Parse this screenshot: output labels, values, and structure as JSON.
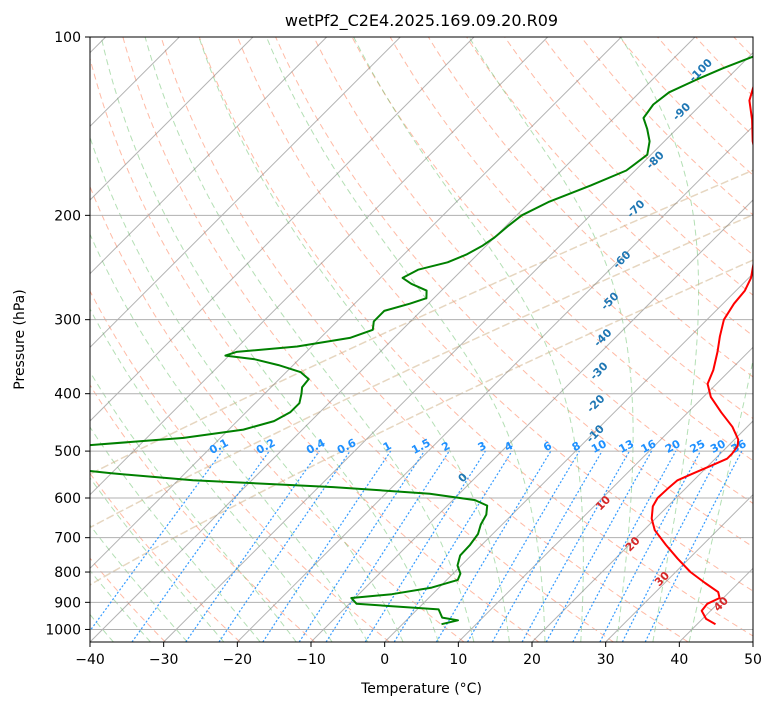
{
  "chart_data": {
    "type": "line",
    "subtype": "skew-T log-P diagram",
    "title": "wetPf2_C2E4.2025.169.09.20.R09",
    "xlabel": "Temperature (°C)",
    "ylabel": "Pressure (hPa)",
    "xlim": [
      -40,
      50
    ],
    "ylim": [
      1050,
      100
    ],
    "y_scale": "log",
    "skew_degrees": 45,
    "grid": true,
    "x_ticks": [
      -40,
      -30,
      -20,
      -10,
      0,
      10,
      20,
      30,
      40,
      50
    ],
    "x_tick_labels": [
      "−40",
      "−30",
      "−20",
      "−10",
      "0",
      "10",
      "20",
      "30",
      "40",
      "50"
    ],
    "y_ticks": [
      1000,
      900,
      800,
      700,
      600,
      500,
      400,
      300,
      200,
      100
    ],
    "y_tick_labels": [
      "1000",
      "900",
      "800",
      "700",
      "600",
      "500",
      "400",
      "300",
      "200",
      "100"
    ],
    "colors": {
      "temperature": "#ff0000",
      "dewpoint": "#008000",
      "isotherm": "#808080",
      "dry_adiabat": "#ff8c69",
      "moist_adiabat": "#74c476",
      "mixing_ratio": "#1e90ff",
      "wet_bulb_labels": "#1f77b4",
      "theta_e_labels": "#d62728",
      "ref_curve": "#d2b48c"
    },
    "series": [
      {
        "key": "temperature",
        "points": [
          [
            42.5,
            980
          ],
          [
            40.5,
            960
          ],
          [
            38.8,
            930
          ],
          [
            38.6,
            905
          ],
          [
            39.5,
            885
          ],
          [
            38.5,
            865
          ],
          [
            35.5,
            835
          ],
          [
            32,
            800
          ],
          [
            28.5,
            760
          ],
          [
            25,
            720
          ],
          [
            21.5,
            680
          ],
          [
            19.5,
            650
          ],
          [
            18,
            620
          ],
          [
            17.5,
            600
          ],
          [
            17.6,
            580
          ],
          [
            17.8,
            560
          ],
          [
            19,
            545
          ],
          [
            20.5,
            528
          ],
          [
            21.6,
            515
          ],
          [
            21.6,
            505
          ],
          [
            21.3,
            490
          ],
          [
            20.5,
            478
          ],
          [
            18,
            455
          ],
          [
            14.5,
            430
          ],
          [
            11,
            405
          ],
          [
            8.8,
            385
          ],
          [
            7.7,
            365
          ],
          [
            5.8,
            340
          ],
          [
            4,
            320
          ],
          [
            2.3,
            300
          ],
          [
            1.5,
            282
          ],
          [
            1.2,
            268
          ],
          [
            0.3,
            255
          ],
          [
            -1.2,
            242
          ],
          [
            -2.7,
            230
          ],
          [
            -4.3,
            220
          ],
          [
            -5.3,
            212
          ],
          [
            -6.5,
            204
          ],
          [
            -8,
            195
          ],
          [
            -11,
            180
          ],
          [
            -14,
            165
          ],
          [
            -18,
            150
          ],
          [
            -21,
            138
          ],
          [
            -24,
            128
          ],
          [
            -26,
            118
          ],
          [
            -27,
            112
          ],
          [
            -28,
            106
          ],
          [
            -28.5,
            100
          ]
        ]
      },
      {
        "key": "dewpoint",
        "points": [
          [
            5.3,
            980
          ],
          [
            7,
            965
          ],
          [
            4.5,
            955
          ],
          [
            2.9,
            925
          ],
          [
            -9,
            905
          ],
          [
            -10.5,
            885
          ],
          [
            -5.5,
            872
          ],
          [
            -1,
            850
          ],
          [
            1.5,
            825
          ],
          [
            1,
            805
          ],
          [
            -0.5,
            780
          ],
          [
            -1.5,
            750
          ],
          [
            -1.6,
            720
          ],
          [
            -2,
            690
          ],
          [
            -2.9,
            665
          ],
          [
            -3.5,
            640
          ],
          [
            -4.6,
            618
          ],
          [
            -7,
            605
          ],
          [
            -14,
            590
          ],
          [
            -28,
            575
          ],
          [
            -48,
            560
          ],
          [
            -60,
            545
          ],
          [
            -70,
            530
          ],
          [
            -77,
            518
          ],
          [
            -85,
            510
          ],
          [
            -85,
            500
          ],
          [
            -68,
            490
          ],
          [
            -55,
            475
          ],
          [
            -48,
            460
          ],
          [
            -45,
            445
          ],
          [
            -44,
            430
          ],
          [
            -44,
            415
          ],
          [
            -45,
            400
          ],
          [
            -45.8,
            390
          ],
          [
            -46,
            378
          ],
          [
            -48,
            368
          ],
          [
            -52,
            358
          ],
          [
            -56,
            350
          ],
          [
            -60.5,
            345
          ],
          [
            -59.5,
            340
          ],
          [
            -52,
            333
          ],
          [
            -46,
            322
          ],
          [
            -44,
            312
          ],
          [
            -45,
            302
          ],
          [
            -45,
            290
          ],
          [
            -42.5,
            282
          ],
          [
            -41,
            276
          ],
          [
            -42,
            268
          ],
          [
            -45,
            261
          ],
          [
            -47,
            255
          ],
          [
            -46,
            247
          ],
          [
            -43,
            240
          ],
          [
            -41.5,
            233
          ],
          [
            -40.5,
            225
          ],
          [
            -40,
            218
          ],
          [
            -39.7,
            208
          ],
          [
            -39.3,
            200
          ],
          [
            -37.5,
            190
          ],
          [
            -34,
            178
          ],
          [
            -31.2,
            168
          ],
          [
            -30.5,
            158
          ],
          [
            -32,
            150
          ],
          [
            -34,
            143
          ],
          [
            -36,
            137
          ],
          [
            -36.5,
            130
          ],
          [
            -36,
            124
          ],
          [
            -34,
            118
          ],
          [
            -32,
            113
          ],
          [
            -29.5,
            108
          ],
          [
            -29,
            104
          ],
          [
            -29.5,
            100
          ]
        ]
      }
    ],
    "mixing_ratio_labels": [
      "0.1",
      "0.2",
      "0.4",
      "0.6",
      "1",
      "1.5",
      "2",
      "3",
      "4",
      "6",
      "8",
      "10",
      "13",
      "16",
      "20",
      "25",
      "30",
      "36"
    ],
    "mixing_ratio_values": [
      0.1,
      0.2,
      0.4,
      0.6,
      1,
      1.5,
      2,
      3,
      4,
      6,
      8,
      10,
      13,
      16,
      20,
      25,
      30,
      36
    ],
    "wet_bulb_labels": [
      "-100",
      "-90",
      "-80",
      "-70",
      "-60",
      "-50",
      "-40",
      "-30",
      "-20",
      "-10",
      "0"
    ],
    "wet_bulb_values": [
      -100,
      -90,
      -80,
      -70,
      -60,
      -50,
      -40,
      -30,
      -20,
      -10,
      0
    ],
    "theta_e_labels": [
      "10",
      "20",
      "30",
      "40"
    ],
    "theta_e_values": [
      10,
      20,
      30,
      40
    ]
  }
}
